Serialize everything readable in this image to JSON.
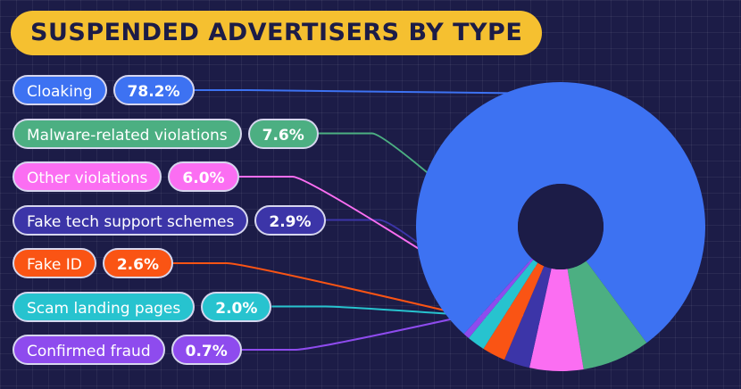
{
  "chart_data": {
    "type": "pie",
    "title": "SUSPENDED ADVERTISERS BY TYPE",
    "categories": [
      "Cloaking",
      "Malware-related violations",
      "Other violations",
      "Fake tech support schemes",
      "Fake ID",
      "Scam landing pages",
      "Confirmed fraud"
    ],
    "values": [
      78.2,
      7.6,
      6.0,
      2.9,
      2.6,
      2.0,
      0.7
    ],
    "labels": [
      "78.2%",
      "7.6%",
      "6.0%",
      "2.9%",
      "2.6%",
      "2.0%",
      "0.7%"
    ],
    "colors": [
      "#3d72f2",
      "#4caf82",
      "#fb6ef2",
      "#3c35a8",
      "#fa5414",
      "#27c3cf",
      "#8e4bee"
    ],
    "value_text_colors": [
      "#ffffff",
      "#ffffff",
      "#ffffff",
      "#ffffff",
      "#ffffff",
      "#ffffff",
      "#ffffff"
    ],
    "donut": true
  }
}
